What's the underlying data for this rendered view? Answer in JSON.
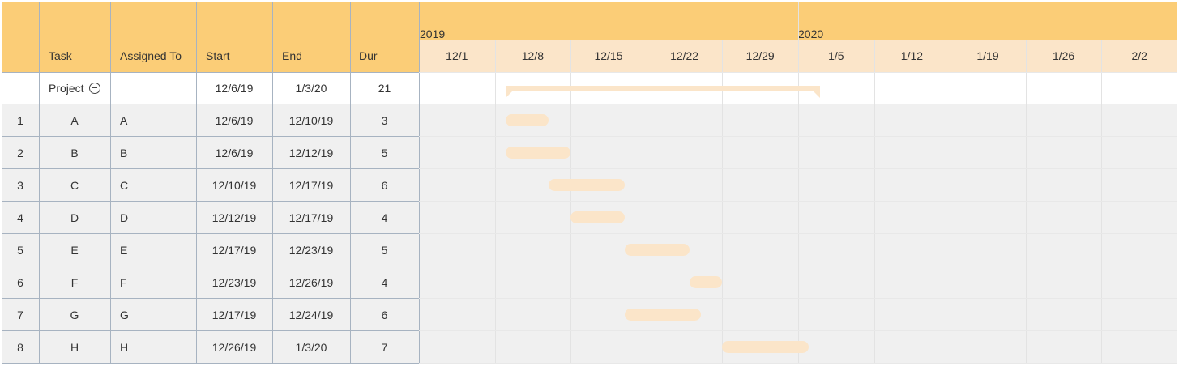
{
  "columns": {
    "task": "Task",
    "assigned_to": "Assigned To",
    "start": "Start",
    "end": "End",
    "duration": "Dur"
  },
  "timeline": {
    "years": [
      "2019",
      "2020"
    ],
    "weeks": [
      "12/1",
      "12/8",
      "12/15",
      "12/22",
      "12/29",
      "1/5",
      "1/12",
      "1/19",
      "1/26",
      "2/2"
    ]
  },
  "project": {
    "name": "Project",
    "start": "12/6/19",
    "end": "1/3/20",
    "duration": "21",
    "collapse_icon": "minus-circle-icon"
  },
  "tasks": [
    {
      "num": "1",
      "task": "A",
      "assigned_to": "A",
      "start": "12/6/19",
      "end": "12/10/19",
      "duration": "3"
    },
    {
      "num": "2",
      "task": "B",
      "assigned_to": "B",
      "start": "12/6/19",
      "end": "12/12/19",
      "duration": "5"
    },
    {
      "num": "3",
      "task": "C",
      "assigned_to": "C",
      "start": "12/10/19",
      "end": "12/17/19",
      "duration": "6"
    },
    {
      "num": "4",
      "task": "D",
      "assigned_to": "D",
      "start": "12/12/19",
      "end": "12/17/19",
      "duration": "4"
    },
    {
      "num": "5",
      "task": "E",
      "assigned_to": "E",
      "start": "12/17/19",
      "end": "12/23/19",
      "duration": "5"
    },
    {
      "num": "6",
      "task": "F",
      "assigned_to": "F",
      "start": "12/23/19",
      "end": "12/26/19",
      "duration": "4"
    },
    {
      "num": "7",
      "task": "G",
      "assigned_to": "G",
      "start": "12/17/19",
      "end": "12/24/19",
      "duration": "6"
    },
    {
      "num": "8",
      "task": "H",
      "assigned_to": "H",
      "start": "12/26/19",
      "end": "1/3/20",
      "duration": "7"
    }
  ],
  "colors": {
    "header": "#fbcd77",
    "subheader": "#fbe5c9",
    "bar": "#fbe5c9",
    "row_shade": "#f0f0f0",
    "grid": "#a7b3c1"
  }
}
